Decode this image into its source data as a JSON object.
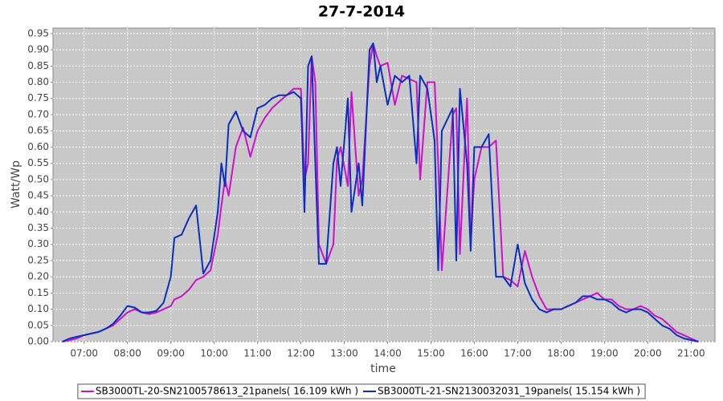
{
  "chart_data": {
    "type": "line",
    "title": "27-7-2014",
    "x_label": "time",
    "y_label": "Watt/Wp",
    "grid": true,
    "legend": "bottom",
    "xlim": [
      "06:17",
      "21:33"
    ],
    "xticks": [
      "07:00",
      "08:00",
      "09:00",
      "10:00",
      "11:00",
      "12:00",
      "13:00",
      "14:00",
      "15:00",
      "16:00",
      "17:00",
      "18:00",
      "19:00",
      "20:00",
      "21:00"
    ],
    "ylim": [
      0,
      0.967
    ],
    "yticks": [
      {
        "value": 0,
        "label": "0.00"
      },
      0.05,
      {
        "value": 0.1,
        "label": "0.10"
      },
      0.15,
      {
        "value": 0.2,
        "label": "0.20"
      },
      0.25,
      {
        "value": 0.3,
        "label": "0.30"
      },
      0.35,
      {
        "value": 0.4,
        "label": "0.40"
      },
      0.45,
      {
        "value": 0.5,
        "label": "0.50"
      },
      0.55,
      {
        "value": 0.6,
        "label": "0.60"
      },
      0.65,
      {
        "value": 0.7,
        "label": "0.70"
      },
      0.75,
      {
        "value": 0.8,
        "label": "0.80"
      },
      0.85,
      {
        "value": 0.9,
        "label": "0.90"
      },
      0.95
    ],
    "x": [
      "06:30",
      "06:40",
      "06:50",
      "07:00",
      "07:10",
      "07:20",
      "07:30",
      "07:40",
      "07:50",
      "08:00",
      "08:10",
      "08:20",
      "08:30",
      "08:40",
      "08:50",
      "09:00",
      "09:05",
      "09:15",
      "09:25",
      "09:35",
      "09:45",
      "09:55",
      "10:05",
      "10:10",
      "10:15",
      "10:20",
      "10:30",
      "10:40",
      "10:50",
      "11:00",
      "11:10",
      "11:20",
      "11:30",
      "11:40",
      "11:50",
      "12:00",
      "12:05",
      "12:10",
      "12:15",
      "12:20",
      "12:25",
      "12:35",
      "12:45",
      "12:50",
      "12:55",
      "13:05",
      "13:10",
      "13:20",
      "13:25",
      "13:35",
      "13:40",
      "13:45",
      "13:50",
      "14:00",
      "14:10",
      "14:20",
      "14:30",
      "14:40",
      "14:45",
      "14:55",
      "15:05",
      "15:10",
      "15:15",
      "15:30",
      "15:35",
      "15:40",
      "15:50",
      "15:55",
      "16:00",
      "16:10",
      "16:20",
      "16:30",
      "16:40",
      "16:50",
      "17:00",
      "17:10",
      "17:20",
      "17:30",
      "17:40",
      "17:50",
      "18:00",
      "18:10",
      "18:20",
      "18:30",
      "18:40",
      "18:50",
      "19:00",
      "19:10",
      "19:20",
      "19:30",
      "19:40",
      "19:50",
      "20:00",
      "20:10",
      "20:20",
      "20:30",
      "20:40",
      "20:50",
      "21:00",
      "21:10"
    ],
    "series": [
      {
        "name": "SB3000TL-20-SN2100578613_21panels( 16.109 kWh )",
        "color": "#cc11cc",
        "values": [
          0,
          0.005,
          0.01,
          0.02,
          0.025,
          0.03,
          0.04,
          0.05,
          0.07,
          0.09,
          0.1,
          0.09,
          0.085,
          0.09,
          0.1,
          0.11,
          0.13,
          0.14,
          0.16,
          0.19,
          0.2,
          0.22,
          0.33,
          0.42,
          0.5,
          0.45,
          0.6,
          0.66,
          0.57,
          0.65,
          0.69,
          0.72,
          0.74,
          0.76,
          0.78,
          0.78,
          0.5,
          0.55,
          0.88,
          0.8,
          0.3,
          0.24,
          0.3,
          0.56,
          0.6,
          0.48,
          0.77,
          0.45,
          0.5,
          0.85,
          0.92,
          0.88,
          0.85,
          0.86,
          0.73,
          0.82,
          0.81,
          0.8,
          0.5,
          0.8,
          0.8,
          0.55,
          0.22,
          0.7,
          0.72,
          0.27,
          0.75,
          0.3,
          0.5,
          0.6,
          0.6,
          0.62,
          0.2,
          0.19,
          0.17,
          0.28,
          0.2,
          0.14,
          0.1,
          0.1,
          0.1,
          0.11,
          0.12,
          0.13,
          0.14,
          0.15,
          0.13,
          0.13,
          0.11,
          0.1,
          0.1,
          0.11,
          0.1,
          0.08,
          0.07,
          0.05,
          0.03,
          0.02,
          0.01,
          0
        ]
      },
      {
        "name": "SB3000TL-21-SN2130032031_19panels( 15.154 kWh )",
        "color": "#0a2ec0",
        "values": [
          0,
          0.01,
          0.015,
          0.02,
          0.025,
          0.03,
          0.04,
          0.055,
          0.08,
          0.11,
          0.105,
          0.09,
          0.09,
          0.095,
          0.12,
          0.2,
          0.32,
          0.33,
          0.38,
          0.42,
          0.21,
          0.25,
          0.4,
          0.55,
          0.48,
          0.67,
          0.71,
          0.65,
          0.63,
          0.72,
          0.73,
          0.75,
          0.76,
          0.76,
          0.77,
          0.75,
          0.4,
          0.85,
          0.88,
          0.55,
          0.24,
          0.24,
          0.55,
          0.6,
          0.48,
          0.75,
          0.4,
          0.55,
          0.42,
          0.9,
          0.92,
          0.8,
          0.85,
          0.73,
          0.82,
          0.8,
          0.82,
          0.55,
          0.82,
          0.78,
          0.62,
          0.22,
          0.65,
          0.72,
          0.25,
          0.78,
          0.55,
          0.28,
          0.6,
          0.6,
          0.64,
          0.2,
          0.2,
          0.17,
          0.3,
          0.18,
          0.13,
          0.1,
          0.09,
          0.1,
          0.1,
          0.11,
          0.12,
          0.14,
          0.14,
          0.13,
          0.13,
          0.12,
          0.1,
          0.09,
          0.1,
          0.1,
          0.09,
          0.07,
          0.05,
          0.04,
          0.02,
          0.01,
          0.005,
          0
        ]
      }
    ]
  }
}
